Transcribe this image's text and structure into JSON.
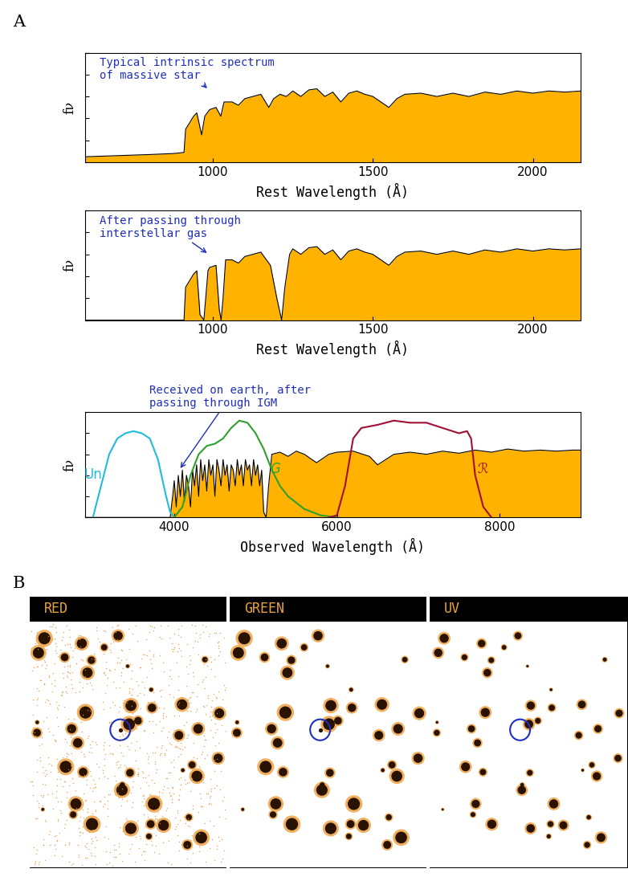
{
  "panel_labels": [
    "A",
    "B"
  ],
  "chart_data": [
    {
      "type": "area",
      "xlabel": "Rest Wavelength (Å)",
      "ylabel": "fν",
      "xlim": [
        600,
        2150
      ],
      "xticks": [
        1000,
        1500,
        2000
      ],
      "ylim": [
        0,
        1
      ],
      "yticks": [
        0,
        0.2,
        0.4,
        0.6,
        0.8,
        1
      ],
      "tick_labels": "x",
      "annotations": [
        "Typical intrinsic spectrum\nof massive star"
      ],
      "series": [
        {
          "type": "area",
          "color": "#FFB300",
          "x": [
            600,
            700,
            800,
            880,
            910,
            915,
            940,
            950,
            965,
            975,
            990,
            1010,
            1025,
            1035,
            1060,
            1080,
            1100,
            1125,
            1150,
            1175,
            1190,
            1210,
            1230,
            1250,
            1275,
            1300,
            1325,
            1350,
            1375,
            1400,
            1425,
            1450,
            1475,
            1500,
            1525,
            1550,
            1575,
            1600,
            1650,
            1700,
            1750,
            1800,
            1850,
            1900,
            1950,
            2000,
            2050,
            2100,
            2150
          ],
          "values": [
            0.05,
            0.06,
            0.07,
            0.08,
            0.09,
            0.3,
            0.42,
            0.45,
            0.25,
            0.42,
            0.48,
            0.5,
            0.42,
            0.55,
            0.55,
            0.52,
            0.58,
            0.6,
            0.62,
            0.5,
            0.58,
            0.62,
            0.6,
            0.65,
            0.6,
            0.66,
            0.67,
            0.6,
            0.64,
            0.55,
            0.63,
            0.65,
            0.62,
            0.6,
            0.55,
            0.5,
            0.58,
            0.62,
            0.63,
            0.6,
            0.63,
            0.6,
            0.64,
            0.62,
            0.65,
            0.63,
            0.65,
            0.64,
            0.65
          ]
        }
      ]
    },
    {
      "type": "area",
      "xlabel": "Rest Wavelength (Å)",
      "ylabel": "fν",
      "xlim": [
        600,
        2150
      ],
      "xticks": [
        1000,
        1500,
        2000
      ],
      "ylim": [
        0,
        1
      ],
      "yticks": [
        0,
        0.2,
        0.4,
        0.6,
        0.8,
        1
      ],
      "tick_labels": "x",
      "annotations": [
        "After passing through\ninterstellar gas"
      ],
      "series": [
        {
          "type": "area",
          "color": "#FFB300",
          "x": [
            600,
            900,
            910,
            915,
            940,
            950,
            960,
            972,
            985,
            990,
            1010,
            1020,
            1026,
            1032,
            1040,
            1060,
            1080,
            1100,
            1125,
            1150,
            1180,
            1200,
            1215,
            1225,
            1240,
            1250,
            1275,
            1300,
            1325,
            1350,
            1375,
            1400,
            1425,
            1450,
            1475,
            1500,
            1525,
            1550,
            1575,
            1600,
            1650,
            1700,
            1750,
            1800,
            1850,
            1900,
            1950,
            2000,
            2050,
            2100,
            2150
          ],
          "values": [
            0,
            0,
            0,
            0.3,
            0.42,
            0.45,
            0.05,
            0,
            0.45,
            0.48,
            0.5,
            0.1,
            0,
            0.2,
            0.55,
            0.55,
            0.52,
            0.58,
            0.6,
            0.62,
            0.5,
            0.2,
            0,
            0.3,
            0.6,
            0.65,
            0.6,
            0.66,
            0.67,
            0.6,
            0.64,
            0.55,
            0.63,
            0.65,
            0.62,
            0.6,
            0.55,
            0.5,
            0.58,
            0.62,
            0.63,
            0.6,
            0.63,
            0.6,
            0.64,
            0.62,
            0.65,
            0.63,
            0.65,
            0.64,
            0.65
          ]
        }
      ]
    },
    {
      "type": "area",
      "xlabel": "Observed Wavelength (Å)",
      "ylabel": "fν",
      "xlim": [
        2900,
        9000
      ],
      "xticks": [
        4000,
        6000,
        8000
      ],
      "ylim": [
        0,
        1
      ],
      "yticks": [
        0,
        0.2,
        0.4,
        0.6,
        0.8,
        1
      ],
      "tick_labels": "x",
      "annotations": [
        "Received on earth, after\npassing through IGM"
      ],
      "series": [
        {
          "type": "area",
          "color": "#FFB300",
          "x": [
            2900,
            3900,
            3950,
            3980,
            4000,
            4025,
            4050,
            4075,
            4100,
            4125,
            4150,
            4175,
            4200,
            4225,
            4250,
            4275,
            4300,
            4325,
            4350,
            4375,
            4400,
            4425,
            4450,
            4475,
            4500,
            4525,
            4550,
            4575,
            4600,
            4625,
            4650,
            4675,
            4700,
            4725,
            4750,
            4775,
            4800,
            4825,
            4850,
            4875,
            4900,
            4925,
            4950,
            4975,
            5000,
            5025,
            5050,
            5075,
            5100,
            5130,
            5160,
            5200,
            5300,
            5400,
            5500,
            5600,
            5750,
            5900,
            6000,
            6200,
            6400,
            6500,
            6700,
            6900,
            7100,
            7300,
            7500,
            7700,
            7900,
            8100,
            8300,
            8500,
            8700,
            8900,
            9000
          ],
          "values": [
            0,
            0,
            0,
            0.2,
            0.35,
            0.1,
            0.4,
            0.2,
            0.45,
            0.15,
            0.4,
            0.3,
            0.1,
            0.45,
            0.3,
            0.5,
            0.2,
            0.55,
            0.35,
            0.5,
            0.25,
            0.55,
            0.4,
            0.5,
            0.2,
            0.55,
            0.45,
            0.3,
            0.55,
            0.4,
            0.5,
            0.25,
            0.5,
            0.45,
            0.3,
            0.55,
            0.4,
            0.5,
            0.3,
            0.55,
            0.45,
            0.5,
            0.3,
            0.55,
            0.4,
            0.5,
            0.3,
            0.45,
            0.05,
            0,
            0.3,
            0.6,
            0.62,
            0.58,
            0.63,
            0.6,
            0.52,
            0.6,
            0.62,
            0.63,
            0.58,
            0.5,
            0.6,
            0.62,
            0.6,
            0.63,
            0.61,
            0.64,
            0.62,
            0.65,
            0.63,
            0.64,
            0.63,
            0.64,
            0.64
          ]
        },
        {
          "name": "Un",
          "type": "line",
          "color": "#22BBDD",
          "x": [
            3000,
            3100,
            3200,
            3300,
            3400,
            3500,
            3600,
            3700,
            3800,
            3900,
            3950,
            4000
          ],
          "values": [
            0,
            0.3,
            0.6,
            0.75,
            0.8,
            0.82,
            0.8,
            0.75,
            0.55,
            0.2,
            0.05,
            0
          ]
        },
        {
          "name": "G",
          "type": "line",
          "color": "#2EA02E",
          "x": [
            4000,
            4100,
            4200,
            4300,
            4400,
            4500,
            4600,
            4700,
            4800,
            4900,
            5000,
            5100,
            5200,
            5300,
            5400,
            5600,
            5800,
            6000
          ],
          "values": [
            0,
            0.1,
            0.4,
            0.6,
            0.68,
            0.7,
            0.75,
            0.85,
            0.92,
            0.9,
            0.8,
            0.65,
            0.45,
            0.3,
            0.2,
            0.08,
            0.02,
            0
          ]
        },
        {
          "name": "ℛ",
          "type": "line",
          "color": "#A01035",
          "x": [
            5900,
            6000,
            6100,
            6200,
            6300,
            6500,
            6700,
            6900,
            7100,
            7300,
            7500,
            7600,
            7650,
            7700,
            7800,
            7900
          ],
          "values": [
            0,
            0.02,
            0.3,
            0.75,
            0.85,
            0.88,
            0.92,
            0.9,
            0.9,
            0.85,
            0.8,
            0.82,
            0.75,
            0.4,
            0.1,
            0
          ]
        }
      ]
    }
  ],
  "image_panels": {
    "labels": [
      "RED",
      "GREEN",
      "UV"
    ]
  }
}
